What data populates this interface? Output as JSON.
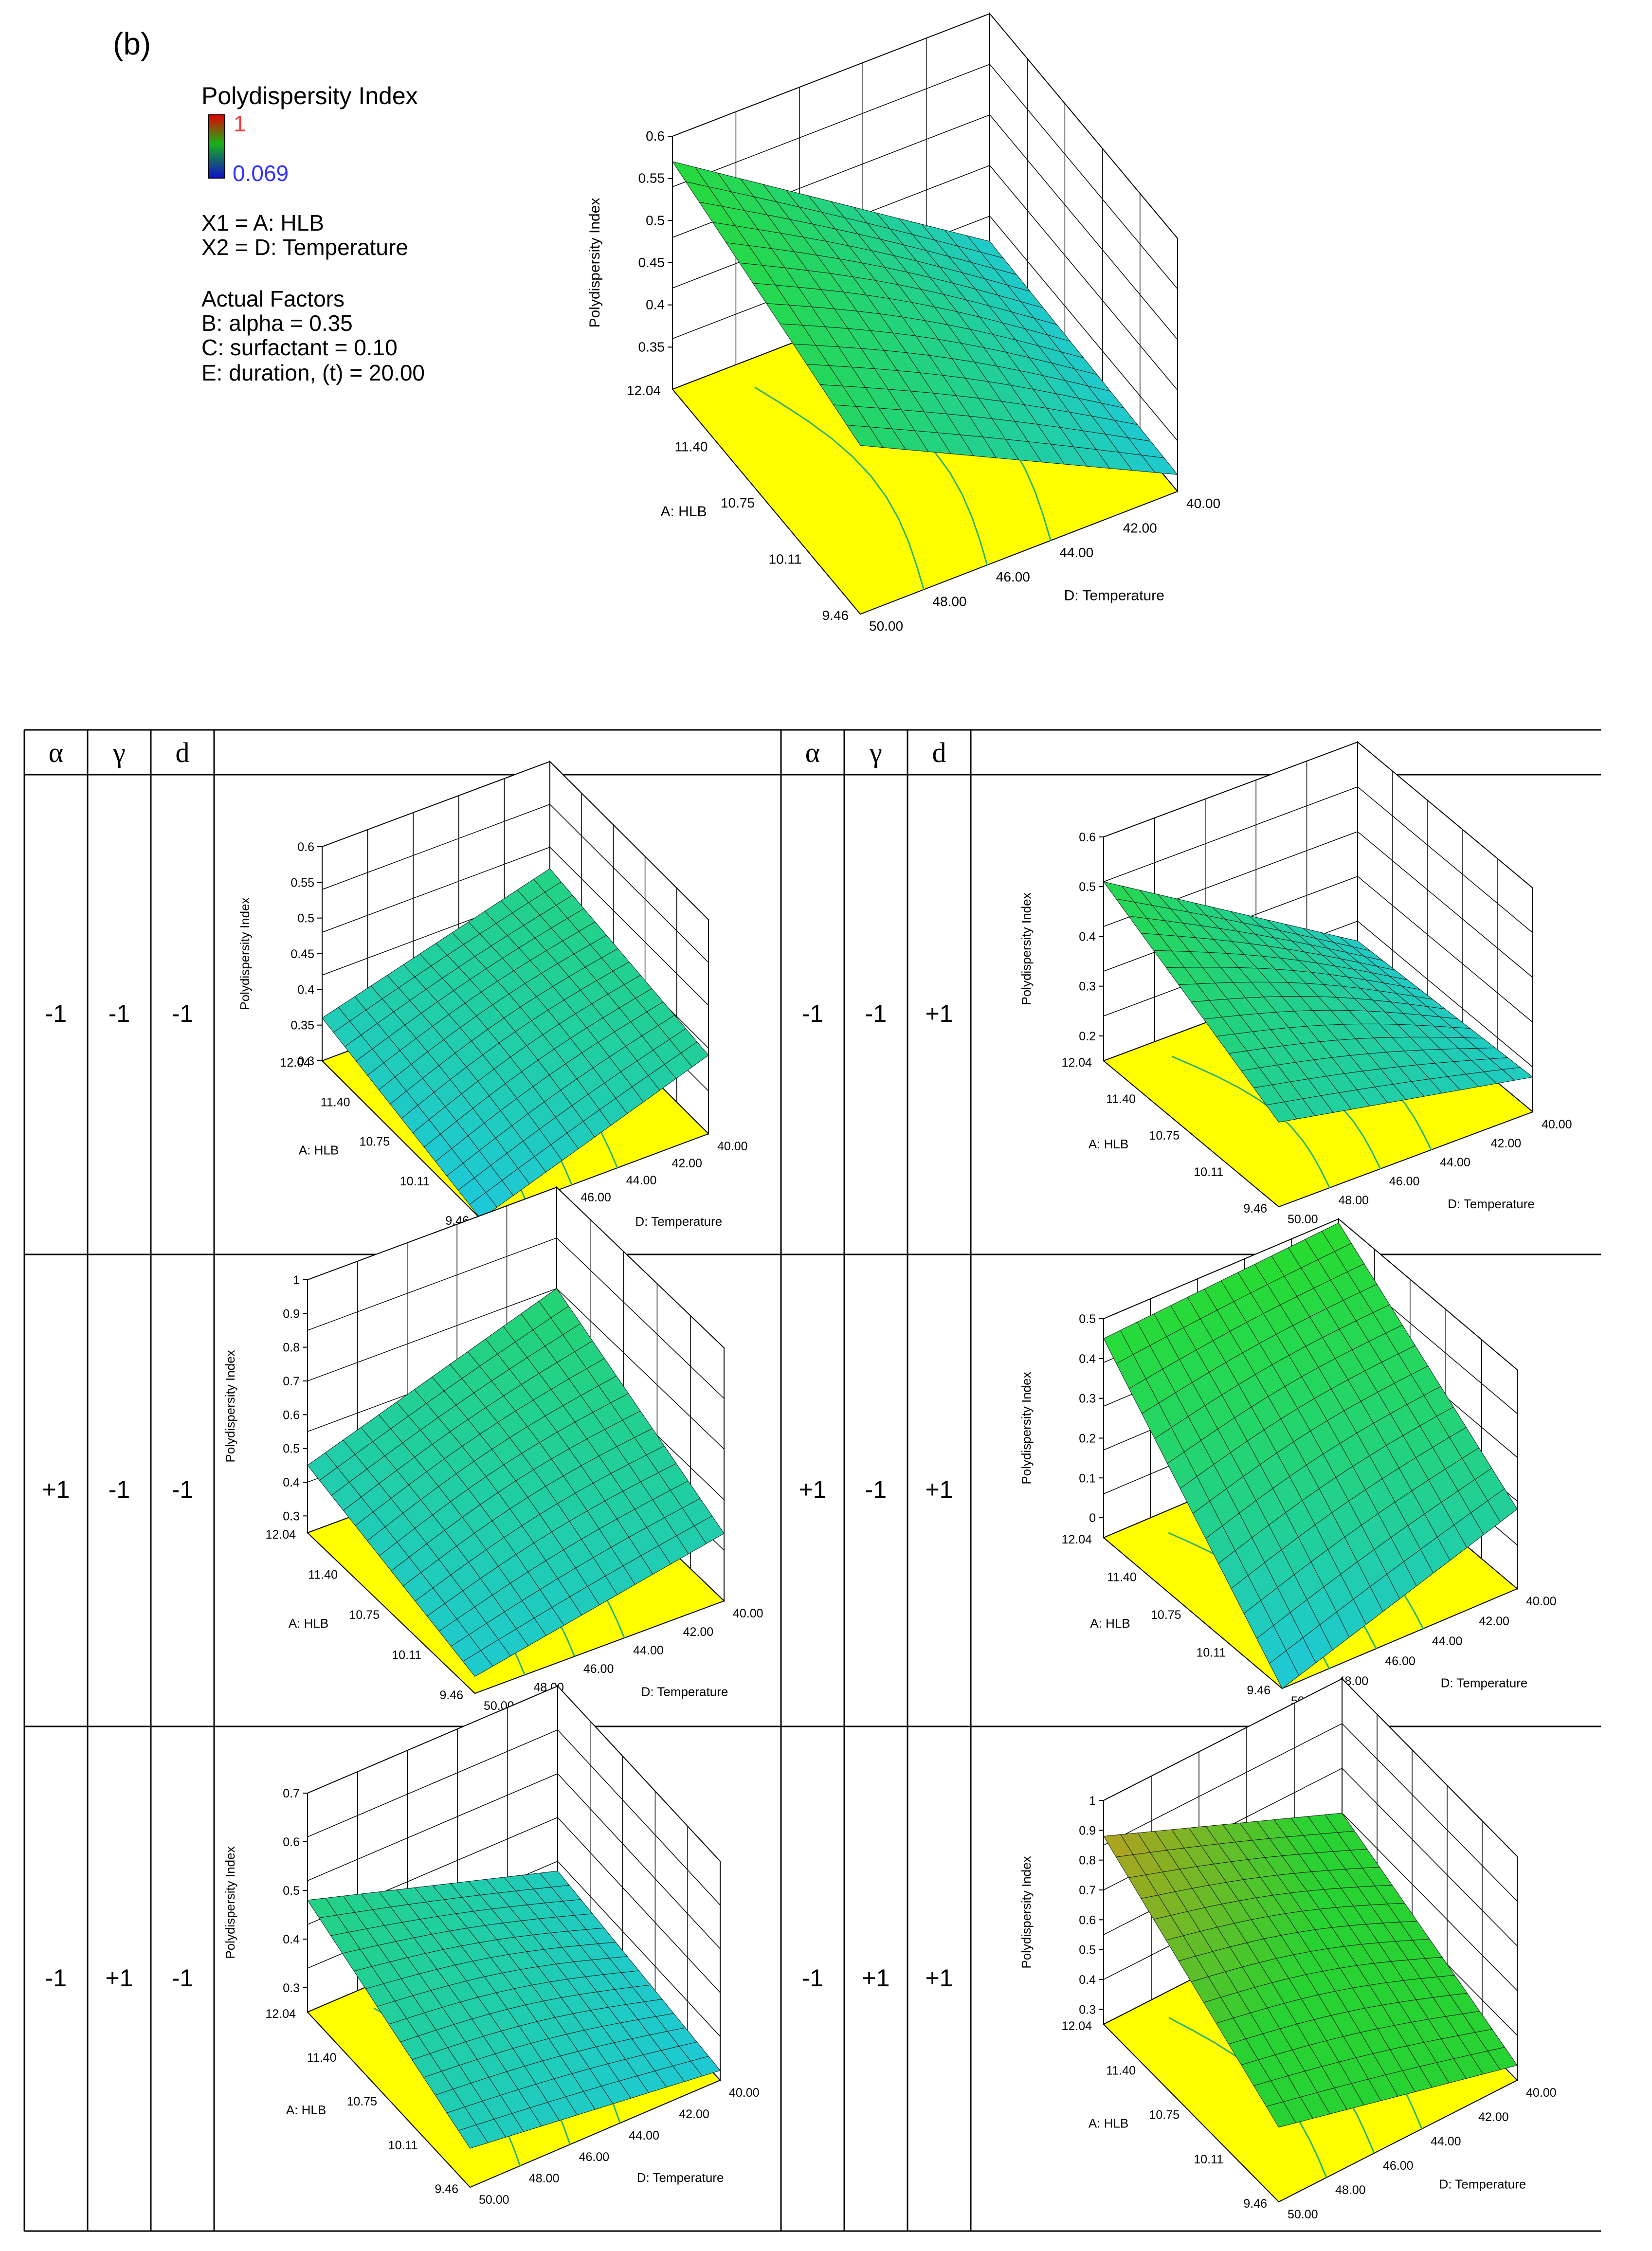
{
  "panel_label": "(b)",
  "legend": {
    "title": "Polydispersity Index",
    "max_value": "1",
    "min_value": "0.069",
    "colors": {
      "high": "#e60000",
      "mid": "#18b018",
      "low": "#1010c8",
      "max_text": "#ff3232",
      "min_text": "#3232ff"
    },
    "x1": "X1 = A: HLB",
    "x2": "X2 = D: Temperature",
    "actual_factors_title": "Actual Factors",
    "factors": [
      "B: alpha = 0.35",
      "C: surfactant = 0.10",
      "E: duration, (t) = 20.00"
    ]
  },
  "table": {
    "headers": [
      "α",
      "γ",
      "d",
      "",
      "α",
      "γ",
      "d",
      ""
    ],
    "rows": [
      {
        "left": [
          "-1",
          "-1",
          "-1"
        ],
        "right": [
          "-1",
          "-1",
          "+1"
        ]
      },
      {
        "left": [
          "+1",
          "-1",
          "-1"
        ],
        "right": [
          "+1",
          "-1",
          "+1"
        ]
      },
      {
        "left": [
          "-1",
          "+1",
          "-1"
        ],
        "right": [
          "-1",
          "+1",
          "+1"
        ]
      }
    ]
  },
  "colors": {
    "surface_green": "#22d62a",
    "surface_cyan": "#22c8e0",
    "surface_orange": "#f08c1a",
    "floor": "#ffff00",
    "contour": "#2bb36a",
    "grid": "#000000",
    "design_point": "#e01010"
  },
  "chart_data": [
    {
      "id": "main",
      "type": "surface",
      "zlabel": "Polydispersity Index",
      "xlabel": "A: HLB",
      "ylabel": "D: Temperature",
      "x_ticks": [
        "9.46",
        "10.11",
        "10.75",
        "11.40",
        "12.04"
      ],
      "y_ticks": [
        "50.00",
        "48.00",
        "46.00",
        "44.00",
        "42.00",
        "40.00"
      ],
      "z_ticks": [
        "0.35",
        "0.4",
        "0.45",
        "0.5",
        "0.55",
        "0.6"
      ],
      "zlim": [
        0.3,
        0.6
      ],
      "corners": {
        "hlb_high_temp_high": 0.57,
        "hlb_high_temp_low": 0.33,
        "hlb_low_temp_high": 0.5,
        "hlb_low_temp_low": 0.32
      }
    },
    {
      "id": "r1l",
      "type": "surface",
      "zlabel": "Polydispersity Index",
      "xlabel": "A: HLB",
      "ylabel": "D: Temperature",
      "x_ticks": [
        "9.46",
        "10.11",
        "10.75",
        "11.40",
        "12.04"
      ],
      "y_ticks": [
        "50.00",
        "48.00",
        "46.00",
        "44.00",
        "42.00",
        "40.00"
      ],
      "z_ticks": [
        "0.3",
        "0.35",
        "0.4",
        "0.45",
        "0.5",
        "0.55",
        "0.6"
      ],
      "zlim": [
        0.3,
        0.6
      ],
      "corners": {
        "hlb_high_temp_high": 0.36,
        "hlb_high_temp_low": 0.45,
        "hlb_low_temp_high": 0.3,
        "hlb_low_temp_low": 0.41
      }
    },
    {
      "id": "r1r",
      "type": "surface",
      "zlabel": "Polydispersity Index",
      "xlabel": "A: HLB",
      "ylabel": "D: Temperature",
      "x_ticks": [
        "9.46",
        "10.11",
        "10.75",
        "11.40",
        "12.04"
      ],
      "y_ticks": [
        "50.00",
        "48.00",
        "46.00",
        "44.00",
        "42.00",
        "40.00"
      ],
      "z_ticks": [
        "0.2",
        "0.3",
        "0.4",
        "0.5",
        "0.6"
      ],
      "zlim": [
        0.15,
        0.6
      ],
      "corners": {
        "hlb_high_temp_high": 0.51,
        "hlb_high_temp_low": 0.2,
        "hlb_low_temp_high": 0.32,
        "hlb_low_temp_low": 0.22
      }
    },
    {
      "id": "r2l",
      "type": "surface",
      "zlabel": "Polydispersity Index",
      "xlabel": "A: HLB",
      "ylabel": "D: Temperature",
      "x_ticks": [
        "9.46",
        "10.11",
        "10.75",
        "11.40",
        "12.04"
      ],
      "y_ticks": [
        "50.00",
        "48.00",
        "46.00",
        "44.00",
        "42.00",
        "40.00"
      ],
      "z_ticks": [
        "0.3",
        "0.4",
        "0.5",
        "0.6",
        "0.7",
        "0.8",
        "0.9",
        "1"
      ],
      "zlim": [
        0.25,
        1.0
      ],
      "corners": {
        "hlb_high_temp_high": 0.45,
        "hlb_high_temp_low": 0.7,
        "hlb_low_temp_high": 0.3,
        "hlb_low_temp_low": 0.45
      }
    },
    {
      "id": "r2r",
      "type": "surface",
      "zlabel": "Polydispersity Index",
      "xlabel": "A: HLB",
      "ylabel": "D: Temperature",
      "x_ticks": [
        "9.46",
        "10.11",
        "10.75",
        "11.40",
        "12.04"
      ],
      "y_ticks": [
        "50.00",
        "48.00",
        "46.00",
        "44.00",
        "42.00",
        "40.00"
      ],
      "z_ticks": [
        "0",
        "0.1",
        "0.2",
        "0.3",
        "0.4",
        "0.5"
      ],
      "zlim": [
        -0.05,
        0.5
      ],
      "corners": {
        "hlb_high_temp_high": 0.45,
        "hlb_high_temp_low": 0.49,
        "hlb_low_temp_high": -0.05,
        "hlb_low_temp_low": 0.15
      }
    },
    {
      "id": "r3l",
      "type": "surface",
      "zlabel": "Polydispersity Index",
      "xlabel": "A: HLB",
      "ylabel": "D: Temperature",
      "x_ticks": [
        "9.46",
        "10.11",
        "10.75",
        "11.40",
        "12.04"
      ],
      "y_ticks": [
        "50.00",
        "48.00",
        "46.00",
        "44.00",
        "42.00",
        "40.00"
      ],
      "z_ticks": [
        "0.3",
        "0.4",
        "0.5",
        "0.6",
        "0.7"
      ],
      "zlim": [
        0.25,
        0.7
      ],
      "corners": {
        "hlb_high_temp_high": 0.48,
        "hlb_high_temp_low": 0.32,
        "hlb_low_temp_high": 0.33,
        "hlb_low_temp_low": 0.27
      }
    },
    {
      "id": "r3r",
      "type": "surface",
      "zlabel": "Polydispersity Index",
      "xlabel": "A: HLB",
      "ylabel": "D: Temperature",
      "x_ticks": [
        "9.46",
        "10.11",
        "10.75",
        "11.40",
        "12.04"
      ],
      "y_ticks": [
        "50.00",
        "48.00",
        "46.00",
        "44.00",
        "42.00",
        "40.00"
      ],
      "z_ticks": [
        "0.3",
        "0.4",
        "0.5",
        "0.6",
        "0.7",
        "0.8",
        "0.9",
        "1"
      ],
      "zlim": [
        0.25,
        1.0
      ],
      "corners": {
        "hlb_high_temp_high": 0.88,
        "hlb_high_temp_low": 0.55,
        "hlb_low_temp_high": 0.5,
        "hlb_low_temp_low": 0.3
      }
    }
  ]
}
